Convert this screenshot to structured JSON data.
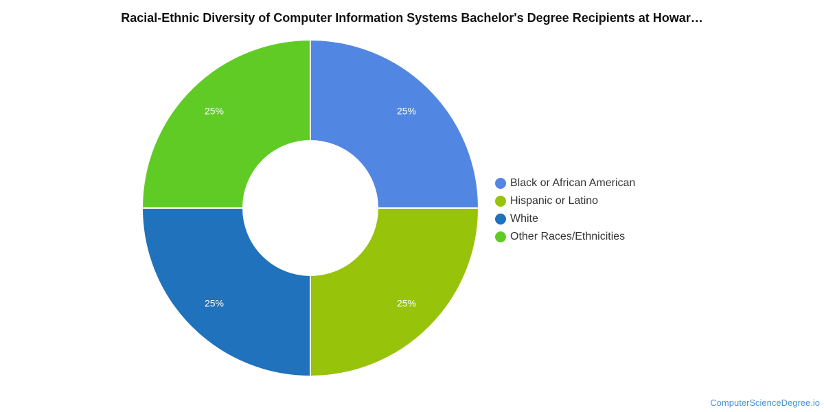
{
  "chart_data": {
    "type": "pie",
    "title": "Racial-Ethnic Diversity of Computer Information Systems Bachelor's Degree Recipients at Howar…",
    "donut": true,
    "series": [
      {
        "name": "Black or African American",
        "value": 25,
        "label": "25%",
        "color": "#5286e3"
      },
      {
        "name": "Hispanic or Latino",
        "value": 25,
        "label": "25%",
        "color": "#97c30a"
      },
      {
        "name": "White",
        "value": 25,
        "label": "25%",
        "color": "#1f72bb"
      },
      {
        "name": "Other Races/Ethnicities",
        "value": 25,
        "label": "25%",
        "color": "#61cb26"
      }
    ],
    "legend_position": "right"
  },
  "watermark": "ComputerScienceDegree.io"
}
